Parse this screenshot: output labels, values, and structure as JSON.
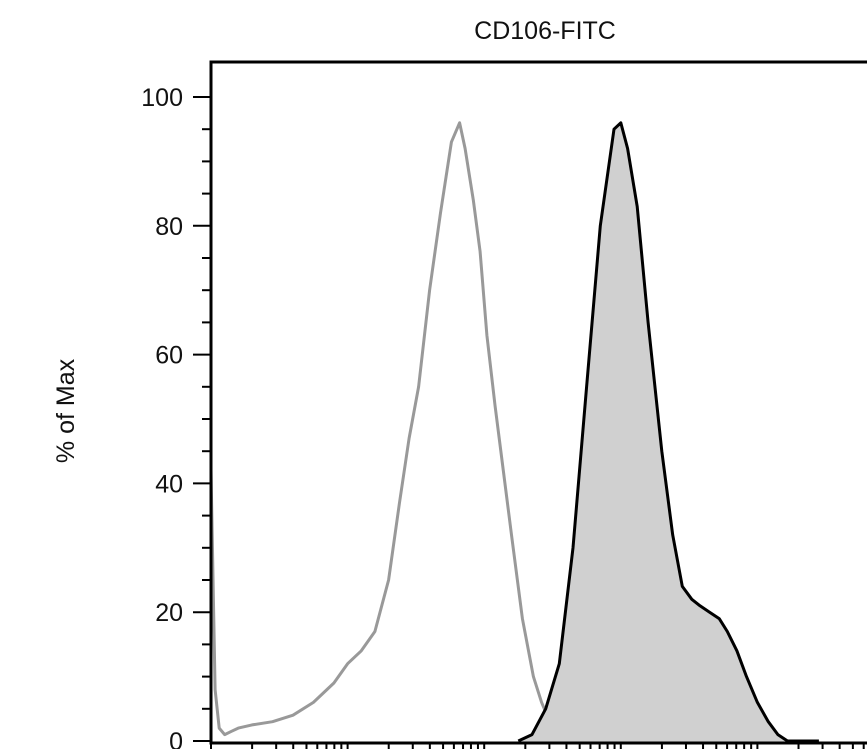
{
  "chart_data": {
    "type": "area",
    "title": "CD106-FITC",
    "xlabel": "",
    "ylabel": "% of Max",
    "ylim": [
      0,
      100
    ],
    "y_ticks": [
      "0",
      "20",
      "40",
      "60",
      "80",
      "100"
    ],
    "x_scale": "log",
    "x_tick_labels_visible": false,
    "x_range_decades": [
      0,
      5.2
    ],
    "grid": false,
    "legend": "none",
    "series": [
      {
        "style": "outline",
        "color": "#999999",
        "x_log": [
          0,
          0.03,
          0.06,
          0.1,
          0.15,
          0.2,
          0.3,
          0.45,
          0.6,
          0.75,
          0.9,
          1.0,
          1.1,
          1.2,
          1.3,
          1.38,
          1.45,
          1.52,
          1.6,
          1.68,
          1.76,
          1.82,
          1.86,
          1.92,
          1.97,
          2.02,
          2.08,
          2.14,
          2.2,
          2.28,
          2.36,
          2.42,
          2.48,
          2.55
        ],
        "y": [
          42,
          8,
          2,
          1,
          1.5,
          2,
          2.5,
          3,
          4,
          6,
          9,
          12,
          14,
          17,
          25,
          37,
          47,
          55,
          70,
          82,
          93,
          96,
          92,
          84,
          76,
          63,
          52,
          42,
          32,
          19,
          10,
          6,
          3,
          1
        ]
      },
      {
        "style": "filled",
        "color": "#000000",
        "fill": "#d0d0d0",
        "x_log": [
          2.25,
          2.35,
          2.45,
          2.55,
          2.65,
          2.75,
          2.85,
          2.95,
          3.0,
          3.05,
          3.12,
          3.2,
          3.3,
          3.38,
          3.45,
          3.52,
          3.58,
          3.65,
          3.72,
          3.78,
          3.85,
          3.92,
          4.0,
          4.08,
          4.15,
          4.22,
          4.3,
          4.38,
          4.45
        ],
        "y": [
          0,
          1,
          5,
          12,
          30,
          55,
          80,
          95,
          96,
          92,
          83,
          65,
          45,
          32,
          24,
          22,
          21,
          20,
          19,
          17,
          14,
          10,
          6,
          3,
          1,
          0,
          0,
          0,
          0
        ]
      }
    ]
  }
}
